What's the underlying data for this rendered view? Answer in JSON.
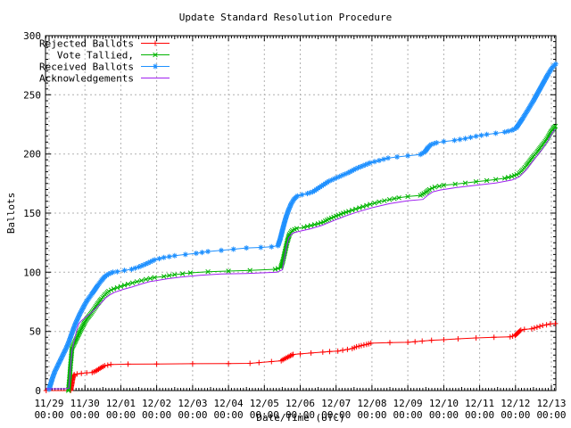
{
  "chart_data": {
    "type": "line",
    "title": "Update Standard Resolution Procedure",
    "xlabel": "Date/Time (UTC)",
    "ylabel": "Ballots",
    "ylim": [
      0,
      300
    ],
    "y_ticks": [
      0,
      50,
      100,
      150,
      200,
      250,
      300
    ],
    "x_unit": "days since 11/29 00:00 UTC",
    "x_ticks": [
      {
        "label": "11/29",
        "sub": "00:00",
        "day": 0
      },
      {
        "label": "11/30",
        "sub": "00:00",
        "day": 1
      },
      {
        "label": "12/01",
        "sub": "00:00",
        "day": 2
      },
      {
        "label": "12/02",
        "sub": "00:00",
        "day": 3
      },
      {
        "label": "12/03",
        "sub": "00:00",
        "day": 4
      },
      {
        "label": "12/04",
        "sub": "00:00",
        "day": 5
      },
      {
        "label": "12/05",
        "sub": "00:00",
        "day": 6
      },
      {
        "label": "12/06",
        "sub": "00:00",
        "day": 7
      },
      {
        "label": "12/07",
        "sub": "00:00",
        "day": 8
      },
      {
        "label": "12/08",
        "sub": "00:00",
        "day": 9
      },
      {
        "label": "12/09",
        "sub": "00:00",
        "day": 10
      },
      {
        "label": "12/10",
        "sub": "00:00",
        "day": 11
      },
      {
        "label": "12/11",
        "sub": "00:00",
        "day": 12
      },
      {
        "label": "12/12",
        "sub": "00:00",
        "day": 13
      },
      {
        "label": "12/13",
        "sub": "00:00",
        "day": 14
      }
    ],
    "grid": true,
    "legend_position": "top-left-inside",
    "colors": {
      "grid": "#b0b0b0",
      "axis": "#000000",
      "background": "#ffffff"
    },
    "series": [
      {
        "name": "Rejected Ballots",
        "color": "#ff0000",
        "marker": "plus",
        "marker_min_dv": 1.0,
        "points": [
          [
            -0.08,
            0
          ],
          [
            0.6,
            0
          ],
          [
            0.63,
            5
          ],
          [
            0.66,
            10
          ],
          [
            0.7,
            13.5
          ],
          [
            0.78,
            14
          ],
          [
            0.9,
            14.5
          ],
          [
            1.05,
            15
          ],
          [
            1.2,
            15.2
          ],
          [
            1.3,
            16.5
          ],
          [
            1.38,
            18
          ],
          [
            1.46,
            19.5
          ],
          [
            1.55,
            21
          ],
          [
            1.72,
            22
          ],
          [
            2.2,
            22.3
          ],
          [
            3.0,
            22.5
          ],
          [
            4.0,
            22.7
          ],
          [
            5.0,
            22.8
          ],
          [
            5.6,
            23
          ],
          [
            5.85,
            23.7
          ],
          [
            6.2,
            24.5
          ],
          [
            6.47,
            25.2
          ],
          [
            6.56,
            26.8
          ],
          [
            6.65,
            28.2
          ],
          [
            6.73,
            29.5
          ],
          [
            6.8,
            30.5
          ],
          [
            7.0,
            31
          ],
          [
            7.3,
            31.7
          ],
          [
            7.63,
            32.5
          ],
          [
            7.82,
            33
          ],
          [
            8.05,
            33.3
          ],
          [
            8.45,
            35.5
          ],
          [
            8.57,
            37
          ],
          [
            8.7,
            38
          ],
          [
            8.85,
            39
          ],
          [
            8.97,
            40
          ],
          [
            9.5,
            40.5
          ],
          [
            10.0,
            40.8
          ],
          [
            10.4,
            41.8
          ],
          [
            10.66,
            42.5
          ],
          [
            11.0,
            43
          ],
          [
            11.4,
            43.7
          ],
          [
            11.9,
            44.5
          ],
          [
            12.4,
            45
          ],
          [
            12.85,
            45.4
          ],
          [
            12.99,
            46.5
          ],
          [
            13.04,
            48
          ],
          [
            13.09,
            49.5
          ],
          [
            13.15,
            51
          ],
          [
            13.25,
            51.7
          ],
          [
            13.45,
            52.2
          ],
          [
            13.6,
            53.5
          ],
          [
            13.76,
            55
          ],
          [
            13.97,
            56.3
          ],
          [
            14.11,
            56.6
          ]
        ]
      },
      {
        "name": "Vote Tallied,",
        "color": "#00b400",
        "marker": "cross",
        "marker_min_dv": 1.2,
        "points": [
          [
            0.54,
            0
          ],
          [
            0.56,
            7
          ],
          [
            0.58,
            14
          ],
          [
            0.6,
            22
          ],
          [
            0.62,
            29
          ],
          [
            0.64,
            36
          ],
          [
            0.72,
            41
          ],
          [
            0.8,
            46
          ],
          [
            0.88,
            51
          ],
          [
            0.95,
            55
          ],
          [
            1.0,
            58
          ],
          [
            1.06,
            61
          ],
          [
            1.13,
            63.5
          ],
          [
            1.2,
            66.5
          ],
          [
            1.28,
            70
          ],
          [
            1.36,
            73.5
          ],
          [
            1.46,
            77.5
          ],
          [
            1.56,
            81
          ],
          [
            1.66,
            84
          ],
          [
            1.8,
            86
          ],
          [
            2.0,
            88
          ],
          [
            2.2,
            90
          ],
          [
            2.45,
            92
          ],
          [
            2.7,
            94
          ],
          [
            2.94,
            95.5
          ],
          [
            3.2,
            96.5
          ],
          [
            3.5,
            98
          ],
          [
            3.94,
            99.5
          ],
          [
            4.43,
            100.5
          ],
          [
            5.0,
            101
          ],
          [
            5.6,
            101.5
          ],
          [
            6.3,
            102.5
          ],
          [
            6.46,
            104
          ],
          [
            6.52,
            110
          ],
          [
            6.58,
            118
          ],
          [
            6.64,
            126
          ],
          [
            6.7,
            132
          ],
          [
            6.78,
            135.5
          ],
          [
            6.9,
            137
          ],
          [
            7.1,
            138
          ],
          [
            7.3,
            139.5
          ],
          [
            7.5,
            141
          ],
          [
            7.65,
            142.5
          ],
          [
            7.8,
            145
          ],
          [
            8.0,
            147.5
          ],
          [
            8.2,
            150
          ],
          [
            8.35,
            151.5
          ],
          [
            8.55,
            153.5
          ],
          [
            8.75,
            155.5
          ],
          [
            8.95,
            157.5
          ],
          [
            9.2,
            159.5
          ],
          [
            9.49,
            161.5
          ],
          [
            9.75,
            163
          ],
          [
            10.0,
            164
          ],
          [
            10.35,
            165
          ],
          [
            10.5,
            167.5
          ],
          [
            10.6,
            170
          ],
          [
            10.75,
            172
          ],
          [
            11.0,
            173.5
          ],
          [
            11.32,
            174.5
          ],
          [
            11.6,
            175.5
          ],
          [
            11.9,
            176.5
          ],
          [
            12.2,
            177.5
          ],
          [
            12.45,
            178.5
          ],
          [
            12.7,
            179.5
          ],
          [
            12.9,
            181
          ],
          [
            13.1,
            183.5
          ],
          [
            13.2,
            186.5
          ],
          [
            13.3,
            190
          ],
          [
            13.4,
            194
          ],
          [
            13.5,
            198
          ],
          [
            13.6,
            201.5
          ],
          [
            13.7,
            205.5
          ],
          [
            13.8,
            209.5
          ],
          [
            13.9,
            214
          ],
          [
            13.98,
            218.5
          ],
          [
            14.05,
            221
          ],
          [
            14.11,
            223.5
          ]
        ]
      },
      {
        "name": "Received Ballots",
        "color": "#1e90ff",
        "marker": "star",
        "marker_min_dv": 1.1,
        "points": [
          [
            0,
            1
          ],
          [
            0.05,
            6
          ],
          [
            0.1,
            11
          ],
          [
            0.16,
            16
          ],
          [
            0.24,
            21
          ],
          [
            0.32,
            26
          ],
          [
            0.4,
            31
          ],
          [
            0.48,
            36
          ],
          [
            0.55,
            41
          ],
          [
            0.62,
            47
          ],
          [
            0.68,
            52
          ],
          [
            0.74,
            57
          ],
          [
            0.8,
            61
          ],
          [
            0.86,
            65
          ],
          [
            0.93,
            69
          ],
          [
            1.0,
            73
          ],
          [
            1.06,
            76
          ],
          [
            1.13,
            79
          ],
          [
            1.2,
            82
          ],
          [
            1.28,
            85.5
          ],
          [
            1.36,
            89
          ],
          [
            1.46,
            93
          ],
          [
            1.56,
            96.5
          ],
          [
            1.66,
            98.5
          ],
          [
            1.78,
            100
          ],
          [
            1.9,
            100.5
          ],
          [
            2.1,
            101.5
          ],
          [
            2.3,
            102.5
          ],
          [
            2.5,
            104.5
          ],
          [
            2.7,
            107
          ],
          [
            2.94,
            110.5
          ],
          [
            3.2,
            112.5
          ],
          [
            3.5,
            114
          ],
          [
            3.8,
            115
          ],
          [
            4.1,
            116
          ],
          [
            4.43,
            117.5
          ],
          [
            4.8,
            118.5
          ],
          [
            5.14,
            119.5
          ],
          [
            5.5,
            120.5
          ],
          [
            5.9,
            121
          ],
          [
            6.2,
            121.5
          ],
          [
            6.38,
            122.5
          ],
          [
            6.44,
            128
          ],
          [
            6.5,
            135
          ],
          [
            6.56,
            142
          ],
          [
            6.62,
            148
          ],
          [
            6.68,
            153
          ],
          [
            6.75,
            158
          ],
          [
            6.83,
            162
          ],
          [
            6.92,
            164.5
          ],
          [
            7.05,
            165.5
          ],
          [
            7.2,
            166.5
          ],
          [
            7.35,
            168
          ],
          [
            7.5,
            171
          ],
          [
            7.65,
            174
          ],
          [
            7.8,
            177
          ],
          [
            7.95,
            179
          ],
          [
            8.1,
            181
          ],
          [
            8.33,
            184
          ],
          [
            8.55,
            187.5
          ],
          [
            8.75,
            190
          ],
          [
            8.95,
            192.5
          ],
          [
            9.2,
            194.5
          ],
          [
            9.45,
            196.5
          ],
          [
            9.7,
            197.5
          ],
          [
            10.0,
            198.5
          ],
          [
            10.35,
            199.5
          ],
          [
            10.48,
            202
          ],
          [
            10.56,
            205.5
          ],
          [
            10.65,
            208
          ],
          [
            10.8,
            209.5
          ],
          [
            11.0,
            210.5
          ],
          [
            11.3,
            211.5
          ],
          [
            11.6,
            213
          ],
          [
            11.9,
            215
          ],
          [
            12.2,
            216.5
          ],
          [
            12.45,
            217.5
          ],
          [
            12.7,
            218.5
          ],
          [
            12.9,
            220
          ],
          [
            13.02,
            222
          ],
          [
            13.1,
            225.5
          ],
          [
            13.2,
            230
          ],
          [
            13.3,
            235
          ],
          [
            13.4,
            240
          ],
          [
            13.5,
            245
          ],
          [
            13.6,
            250.5
          ],
          [
            13.7,
            256
          ],
          [
            13.8,
            261.5
          ],
          [
            13.9,
            267
          ],
          [
            13.98,
            271
          ],
          [
            14.05,
            274
          ],
          [
            14.12,
            276
          ]
        ]
      },
      {
        "name": "Acknowledgements",
        "color": "#a020f0",
        "marker": "none",
        "marker_min_dv": 0,
        "points": [
          [
            -0.08,
            1.5
          ],
          [
            0.45,
            1.5
          ],
          [
            0.55,
            2
          ],
          [
            0.58,
            12
          ],
          [
            0.61,
            24
          ],
          [
            0.64,
            34
          ],
          [
            0.7,
            42
          ],
          [
            0.76,
            50
          ],
          [
            0.82,
            56
          ],
          [
            0.9,
            59
          ],
          [
            1.0,
            61.5
          ],
          [
            1.15,
            65
          ],
          [
            1.32,
            70
          ],
          [
            1.45,
            74
          ],
          [
            1.57,
            78
          ],
          [
            1.7,
            81
          ],
          [
            1.82,
            83
          ],
          [
            2.06,
            85.5
          ],
          [
            2.31,
            87.5
          ],
          [
            2.56,
            90
          ],
          [
            2.8,
            92
          ],
          [
            3.0,
            93
          ],
          [
            3.3,
            94.5
          ],
          [
            3.7,
            96
          ],
          [
            4.2,
            97.5
          ],
          [
            4.8,
            98.5
          ],
          [
            5.5,
            99
          ],
          [
            6.35,
            100
          ],
          [
            6.5,
            102
          ],
          [
            6.56,
            112
          ],
          [
            6.62,
            122
          ],
          [
            6.68,
            129
          ],
          [
            6.78,
            133
          ],
          [
            6.95,
            134.5
          ],
          [
            7.26,
            136.5
          ],
          [
            7.6,
            139.5
          ],
          [
            8.0,
            144.5
          ],
          [
            8.3,
            148
          ],
          [
            8.6,
            151
          ],
          [
            9.0,
            154.5
          ],
          [
            9.49,
            158
          ],
          [
            10.0,
            160.5
          ],
          [
            10.42,
            161.5
          ],
          [
            10.55,
            165
          ],
          [
            10.7,
            168
          ],
          [
            10.9,
            169.5
          ],
          [
            11.32,
            171.5
          ],
          [
            11.9,
            173.5
          ],
          [
            12.45,
            175.5
          ],
          [
            12.9,
            178
          ],
          [
            13.1,
            180.5
          ],
          [
            13.3,
            186.5
          ],
          [
            13.5,
            194.5
          ],
          [
            13.7,
            202
          ],
          [
            13.9,
            211
          ],
          [
            14.0,
            216.5
          ],
          [
            14.11,
            221
          ]
        ]
      }
    ]
  }
}
